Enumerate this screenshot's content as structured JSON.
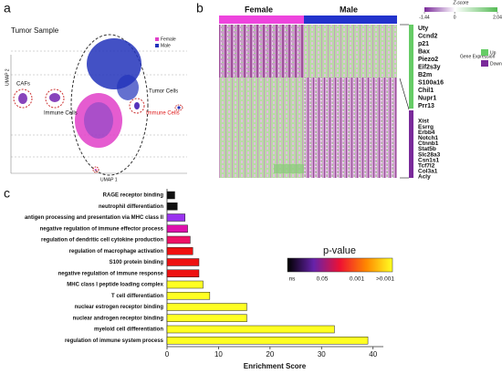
{
  "chart_data": [
    {
      "type": "umap",
      "panel": "a",
      "title": "Tumor Sample",
      "legend": [
        "Female",
        "Male"
      ],
      "colors": [
        "#e040c8",
        "#2233bb"
      ],
      "xlabel": "UMAP 1",
      "ylabel": "UMAP 2",
      "annotations": [
        "Tumor Cells",
        "CAFs",
        "Immune Cells",
        "Immune Cells"
      ]
    },
    {
      "type": "heatmap",
      "panel": "b",
      "columns": [
        "Female",
        "Male"
      ],
      "column_colors": [
        "#ee44dd",
        "#2233cc"
      ],
      "colorbar": {
        "title": "Z-score",
        "lim": [
          -1.44,
          2.04
        ],
        "ticks": [
          -1.44,
          0,
          2.04
        ]
      },
      "legend": {
        "title": "Gene Expression",
        "items": [
          "Up",
          "Down"
        ],
        "colors": [
          "#66cc66",
          "#7a2a9a"
        ]
      },
      "genes_up": [
        "Uty",
        "Ccnd2",
        "p21",
        "Bax",
        "Piezo2",
        "Eif2s3y",
        "B2m",
        "S100a16",
        "Chil1",
        "Nupr1",
        "Prr13"
      ],
      "genes_down": [
        "Xist",
        "Esrrg",
        "Erbb4",
        "Notch1",
        "Ctnnb1",
        "Stat5b",
        "Slc28a3",
        "Csn1s1",
        "Tcf7l2",
        "Col3a1",
        "Acly"
      ]
    },
    {
      "type": "bar",
      "panel": "c",
      "orientation": "horizontal",
      "categories": [
        "RAGE receptor binding",
        "neutrophil differentiation",
        "antigen processing and presentation via MHC class II",
        "negative regulation of immune effector process",
        "regulation of dendritic cell cytokine production",
        "regulation of macrophage activation",
        "S100 protein binding",
        "negative regulation of immune response",
        "MHC class I peptide loading complex",
        "T cell differentiation",
        "nuclear estrogen receptor binding",
        "nuclear androgen receptor binding",
        "myeloid cell differentiation",
        "regulation of immune system process"
      ],
      "values": [
        1.5,
        2,
        3.5,
        4,
        4.5,
        5,
        6.2,
        6.2,
        7,
        8.3,
        15.5,
        15.5,
        32.5,
        39
      ],
      "colors": [
        "#111111",
        "#111111",
        "#9933ee",
        "#dd11aa",
        "#ee1166",
        "#ee1111",
        "#ee1111",
        "#ee1111",
        "#ffff22",
        "#ffff22",
        "#ffff22",
        "#ffff22",
        "#ffff22",
        "#ffff22"
      ],
      "xlim": [
        0,
        42
      ],
      "xticks": [
        0,
        10,
        20,
        30,
        40
      ],
      "xlabel": "Enrichment Score",
      "colorbar": {
        "title": "p-value",
        "labels": [
          "ns",
          "0.05",
          "0.001",
          ">0.001"
        ],
        "colors": [
          "#000000",
          "#6622aa",
          "#ee1133",
          "#ff8800",
          "#ffff22"
        ]
      }
    }
  ]
}
